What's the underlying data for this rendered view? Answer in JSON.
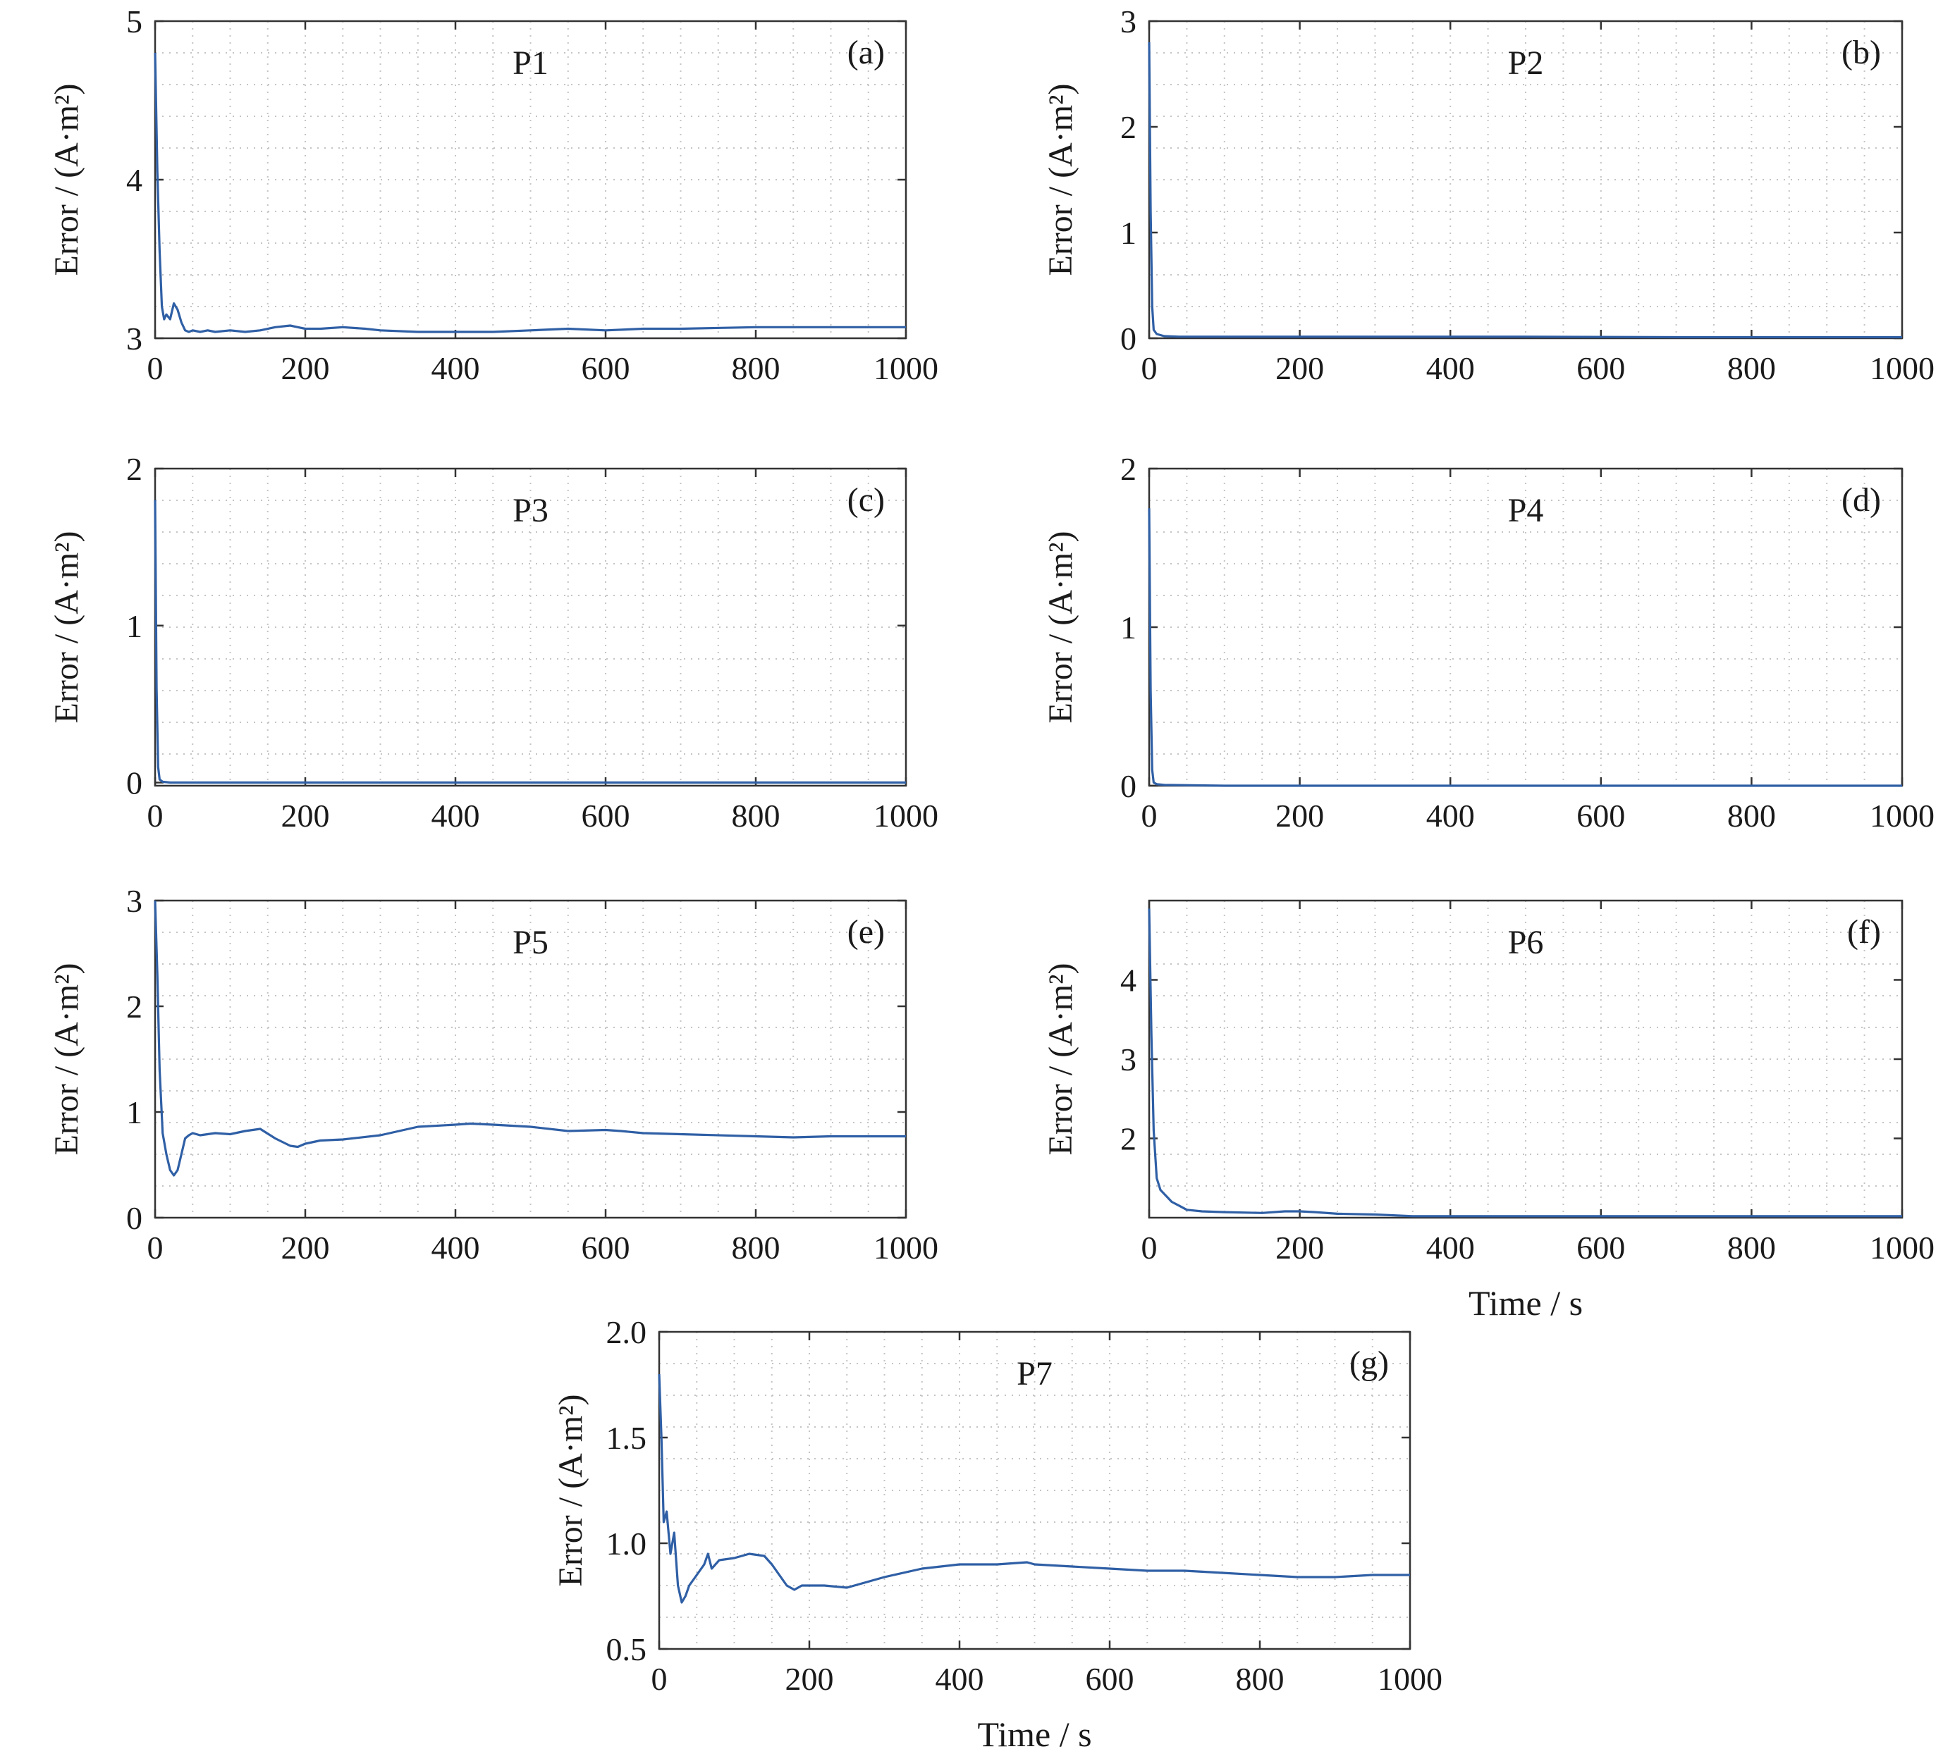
{
  "colors": {
    "line": "#2f5fa5",
    "grid": "#c4c4c4",
    "axis": "#333333",
    "text": "#1a1a1a"
  },
  "chart_data": [
    {
      "id": "a",
      "type": "line",
      "title": "P1",
      "letter": "(a)",
      "ylabel": "Error / (A·m²)",
      "xlabel": "",
      "xlim": [
        0,
        1000
      ],
      "ylim": [
        3,
        5
      ],
      "xticks": [
        0,
        200,
        400,
        600,
        800,
        1000
      ],
      "xtick_labels": [
        "0",
        "200",
        "400",
        "600",
        "800",
        "1000"
      ],
      "yticks": [
        3,
        4,
        5
      ],
      "ytick_labels": [
        "3",
        "4",
        "5"
      ],
      "grid": true,
      "series": [
        {
          "x": [
            0,
            3,
            6,
            9,
            12,
            15,
            20,
            25,
            30,
            35,
            40,
            45,
            50,
            60,
            70,
            80,
            100,
            120,
            140,
            160,
            180,
            190,
            200,
            220,
            250,
            280,
            300,
            350,
            400,
            450,
            500,
            550,
            600,
            650,
            700,
            800,
            850,
            900,
            950,
            1000
          ],
          "y": [
            4.8,
            4.05,
            3.55,
            3.2,
            3.12,
            3.15,
            3.12,
            3.22,
            3.18,
            3.1,
            3.05,
            3.04,
            3.05,
            3.04,
            3.05,
            3.04,
            3.05,
            3.04,
            3.05,
            3.07,
            3.08,
            3.07,
            3.06,
            3.06,
            3.07,
            3.06,
            3.05,
            3.04,
            3.04,
            3.04,
            3.05,
            3.06,
            3.05,
            3.06,
            3.06,
            3.07,
            3.07,
            3.07,
            3.07,
            3.07
          ]
        }
      ]
    },
    {
      "id": "b",
      "type": "line",
      "title": "P2",
      "letter": "(b)",
      "ylabel": "Error / (A·m²)",
      "xlabel": "",
      "xlim": [
        0,
        1000
      ],
      "ylim": [
        0,
        3
      ],
      "xticks": [
        0,
        200,
        400,
        600,
        800,
        1000
      ],
      "xtick_labels": [
        "0",
        "200",
        "400",
        "600",
        "800",
        "1000"
      ],
      "yticks": [
        0,
        1,
        2,
        3
      ],
      "ytick_labels": [
        "0",
        "1",
        "2",
        "3"
      ],
      "grid": true,
      "series": [
        {
          "x": [
            0,
            2,
            4,
            6,
            10,
            20,
            40,
            100,
            300,
            500,
            700,
            1000
          ],
          "y": [
            2.8,
            1.2,
            0.3,
            0.08,
            0.04,
            0.02,
            0.015,
            0.015,
            0.015,
            0.015,
            0.01,
            0.01
          ]
        }
      ]
    },
    {
      "id": "c",
      "type": "line",
      "title": "P3",
      "letter": "(c)",
      "ylabel": "Error / (A·m²)",
      "xlabel": "",
      "xlim": [
        0,
        1000
      ],
      "ylim": [
        -0.02,
        2
      ],
      "xticks": [
        0,
        200,
        400,
        600,
        800,
        1000
      ],
      "xtick_labels": [
        "0",
        "200",
        "400",
        "600",
        "800",
        "1000"
      ],
      "yticks": [
        0,
        1,
        2
      ],
      "ytick_labels": [
        "0",
        "1",
        "2"
      ],
      "grid": true,
      "series": [
        {
          "x": [
            0,
            2,
            4,
            6,
            10,
            20,
            100,
            500,
            1000
          ],
          "y": [
            1.8,
            0.6,
            0.1,
            0.02,
            0.005,
            0.0,
            0.0,
            0.0,
            0.0
          ]
        }
      ]
    },
    {
      "id": "d",
      "type": "line",
      "title": "P4",
      "letter": "(d)",
      "ylabel": "Error / (A·m²)",
      "xlabel": "",
      "xlim": [
        0,
        1000
      ],
      "ylim": [
        0,
        2
      ],
      "xticks": [
        0,
        200,
        400,
        600,
        800,
        1000
      ],
      "xtick_labels": [
        "0",
        "200",
        "400",
        "600",
        "800",
        "1000"
      ],
      "yticks": [
        0,
        1,
        2
      ],
      "ytick_labels": [
        "0",
        "1",
        "2"
      ],
      "grid": true,
      "series": [
        {
          "x": [
            0,
            2,
            4,
            6,
            10,
            20,
            100,
            500,
            1000
          ],
          "y": [
            1.75,
            0.6,
            0.1,
            0.02,
            0.01,
            0.005,
            0.0,
            0.0,
            0.0
          ]
        }
      ]
    },
    {
      "id": "e",
      "type": "line",
      "title": "P5",
      "letter": "(e)",
      "ylabel": "Error / (A·m²)",
      "xlabel": "",
      "xlim": [
        0,
        1000
      ],
      "ylim": [
        0,
        3
      ],
      "xticks": [
        0,
        200,
        400,
        600,
        800,
        1000
      ],
      "xtick_labels": [
        "0",
        "200",
        "400",
        "600",
        "800",
        "1000"
      ],
      "yticks": [
        0,
        1,
        2,
        3
      ],
      "ytick_labels": [
        "0",
        "1",
        "2",
        "3"
      ],
      "grid": true,
      "series": [
        {
          "x": [
            0,
            3,
            6,
            10,
            15,
            20,
            25,
            30,
            35,
            40,
            45,
            50,
            60,
            80,
            100,
            120,
            140,
            160,
            180,
            190,
            200,
            220,
            250,
            300,
            350,
            400,
            420,
            450,
            500,
            550,
            600,
            620,
            650,
            700,
            800,
            850,
            900,
            950,
            1000
          ],
          "y": [
            3.0,
            2.3,
            1.4,
            0.8,
            0.6,
            0.45,
            0.4,
            0.45,
            0.6,
            0.75,
            0.78,
            0.8,
            0.78,
            0.8,
            0.79,
            0.82,
            0.84,
            0.75,
            0.68,
            0.67,
            0.7,
            0.73,
            0.74,
            0.78,
            0.86,
            0.88,
            0.89,
            0.88,
            0.86,
            0.82,
            0.83,
            0.82,
            0.8,
            0.79,
            0.77,
            0.76,
            0.77,
            0.77,
            0.77
          ]
        }
      ]
    },
    {
      "id": "f",
      "type": "line",
      "title": "P6",
      "letter": "(f)",
      "ylabel": "Error / (A·m²)",
      "xlabel": "Time / s",
      "xlim": [
        0,
        1000
      ],
      "ylim": [
        1,
        5
      ],
      "xticks": [
        0,
        200,
        400,
        600,
        800,
        1000
      ],
      "xtick_labels": [
        "0",
        "200",
        "400",
        "600",
        "800",
        "1000"
      ],
      "yticks": [
        2,
        3,
        4
      ],
      "ytick_labels": [
        "2",
        "3",
        "4"
      ],
      "grid": true,
      "series": [
        {
          "x": [
            0,
            3,
            6,
            10,
            15,
            20,
            25,
            30,
            40,
            50,
            70,
            100,
            150,
            180,
            200,
            220,
            250,
            300,
            350,
            400,
            600,
            1000
          ],
          "y": [
            4.9,
            3.3,
            2.1,
            1.5,
            1.35,
            1.3,
            1.25,
            1.2,
            1.15,
            1.1,
            1.08,
            1.07,
            1.06,
            1.08,
            1.08,
            1.07,
            1.05,
            1.04,
            1.02,
            1.02,
            1.02,
            1.02
          ]
        }
      ]
    },
    {
      "id": "g",
      "type": "line",
      "title": "P7",
      "letter": "(g)",
      "ylabel": "Error / (A·m²)",
      "xlabel": "Time / s",
      "xlim": [
        0,
        1000
      ],
      "ylim": [
        0.5,
        2.0
      ],
      "xticks": [
        0,
        200,
        400,
        600,
        800,
        1000
      ],
      "xtick_labels": [
        "0",
        "200",
        "400",
        "600",
        "800",
        "1000"
      ],
      "yticks": [
        0.5,
        1.0,
        1.5,
        2.0
      ],
      "ytick_labels": [
        "0.5",
        "1.0",
        "1.5",
        "2.0"
      ],
      "grid": true,
      "series": [
        {
          "x": [
            0,
            3,
            6,
            10,
            15,
            20,
            25,
            30,
            35,
            40,
            50,
            60,
            65,
            70,
            80,
            100,
            120,
            140,
            150,
            160,
            170,
            180,
            190,
            200,
            220,
            250,
            300,
            350,
            400,
            450,
            490,
            500,
            550,
            600,
            650,
            700,
            750,
            800,
            850,
            900,
            950,
            1000
          ],
          "y": [
            1.8,
            1.5,
            1.1,
            1.15,
            0.95,
            1.05,
            0.8,
            0.72,
            0.75,
            0.8,
            0.85,
            0.9,
            0.95,
            0.88,
            0.92,
            0.93,
            0.95,
            0.94,
            0.9,
            0.85,
            0.8,
            0.78,
            0.8,
            0.8,
            0.8,
            0.79,
            0.84,
            0.88,
            0.9,
            0.9,
            0.91,
            0.9,
            0.89,
            0.88,
            0.87,
            0.87,
            0.86,
            0.85,
            0.84,
            0.84,
            0.85,
            0.85
          ]
        }
      ]
    }
  ]
}
